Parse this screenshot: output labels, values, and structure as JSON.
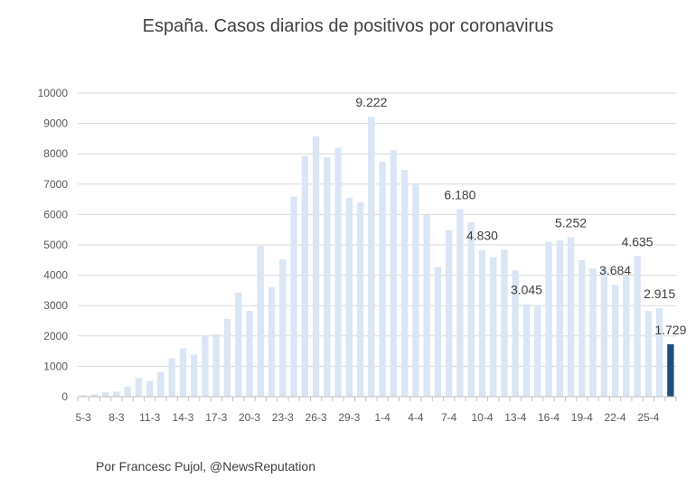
{
  "chart_data": {
    "type": "bar",
    "title": "España. Casos diarios de positivos por coronavirus",
    "footer": "Por Francesc Pujol, @NewsReputation",
    "xlabel": "",
    "ylabel": "",
    "ylim": [
      0,
      10000
    ],
    "yticks": [
      "0",
      "1000",
      "2000",
      "3000",
      "4000",
      "5000",
      "6000",
      "7000",
      "8000",
      "9000",
      "10000"
    ],
    "grid": true,
    "legend": "none",
    "categories": [
      "5-3",
      "6-3",
      "7-3",
      "8-3",
      "9-3",
      "10-3",
      "11-3",
      "12-3",
      "13-3",
      "14-3",
      "15-3",
      "16-3",
      "17-3",
      "18-3",
      "19-3",
      "20-3",
      "21-3",
      "22-3",
      "23-3",
      "24-3",
      "25-3",
      "26-3",
      "27-3",
      "28-3",
      "29-3",
      "30-3",
      "31-3",
      "1-4",
      "2-4",
      "3-4",
      "4-4",
      "5-4",
      "6-4",
      "7-4",
      "8-4",
      "9-4",
      "10-4",
      "11-4",
      "12-4",
      "13-4",
      "14-4",
      "15-4",
      "16-4",
      "17-4",
      "18-4",
      "19-4",
      "20-4",
      "21-4",
      "22-4",
      "23-4",
      "24-4",
      "25-4",
      "26-4",
      "27-4"
    ],
    "tick_labels": [
      "5-3",
      "",
      "",
      "8-3",
      "",
      "",
      "11-3",
      "",
      "",
      "14-3",
      "",
      "",
      "17-3",
      "",
      "",
      "20-3",
      "",
      "",
      "23-3",
      "",
      "",
      "26-3",
      "",
      "",
      "29-3",
      "",
      "",
      "1-4",
      "",
      "",
      "4-4",
      "",
      "",
      "7-4",
      "",
      "",
      "10-4",
      "",
      "",
      "13-4",
      "",
      "",
      "16-4",
      "",
      "",
      "19-4",
      "",
      "",
      "22-4",
      "",
      "",
      "25-4",
      "",
      ""
    ],
    "values": [
      50,
      80,
      150,
      170,
      330,
      620,
      520,
      820,
      1270,
      1590,
      1390,
      2000,
      2050,
      2560,
      3430,
      2830,
      4960,
      3600,
      4520,
      6590,
      7930,
      8580,
      7880,
      8200,
      6550,
      6400,
      9222,
      7730,
      8120,
      7470,
      7030,
      5990,
      4270,
      5480,
      6180,
      5750,
      4830,
      4600,
      4840,
      4170,
      3045,
      3020,
      5090,
      5150,
      5252,
      4500,
      4220,
      4250,
      3684,
      3980,
      4635,
      2820,
      2915,
      1729
    ],
    "data_labels": [
      {
        "index": 26,
        "text": "9.222"
      },
      {
        "index": 34,
        "text": "6.180"
      },
      {
        "index": 36,
        "text": "4.830"
      },
      {
        "index": 40,
        "text": "3.045"
      },
      {
        "index": 44,
        "text": "5.252"
      },
      {
        "index": 48,
        "text": "3.684"
      },
      {
        "index": 50,
        "text": "4.635"
      },
      {
        "index": 52,
        "text": "2.915"
      },
      {
        "index": 53,
        "text": "1.729"
      }
    ],
    "highlight_index": 53,
    "colors": {
      "bar": "#dae6f3",
      "highlight": "#1f4e79",
      "grid": "#d9d9d9",
      "axis": "#bfbfbf",
      "text": "#595959",
      "label": "#404040"
    }
  }
}
